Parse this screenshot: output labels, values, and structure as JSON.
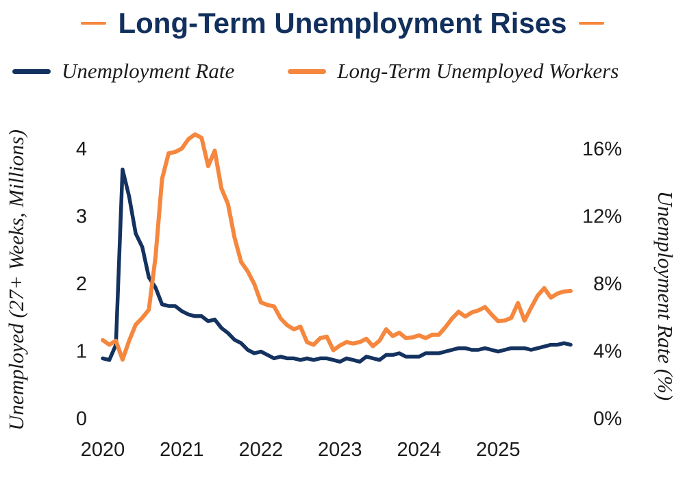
{
  "header": {
    "title": "Long-Term Unemployment Rises"
  },
  "legend": {
    "items": [
      {
        "label": "Unemployment Rate",
        "color": "#14325F"
      },
      {
        "label": "Long-Term Unemployed Workers",
        "color": "#F5873E"
      }
    ]
  },
  "colors": {
    "navy": "#14325F",
    "orange": "#F5873E",
    "title_navy": "#12305D",
    "text": "#1b1b1b",
    "background": "#FFFFFF"
  },
  "chart_data": {
    "type": "line",
    "title": "Long-Term Unemployment Rises",
    "x_unit": "monthly",
    "x_start": "2020-01",
    "x_end": "2025-12",
    "x_tick_labels": [
      "2020",
      "2021",
      "2022",
      "2023",
      "2024",
      "2025"
    ],
    "grid": false,
    "legend_position": "top",
    "left_axis": {
      "title": "Unemployed (27+ Weeks, Millions)",
      "tick_labels": [
        "0",
        "1",
        "2",
        "3",
        "4"
      ],
      "tick_values": [
        0,
        1,
        2,
        3,
        4
      ],
      "range": [
        0,
        4.35
      ]
    },
    "right_axis": {
      "title": "Unemployment Rate (%)",
      "tick_labels": [
        "0%",
        "4%",
        "8%",
        "12%",
        "16%"
      ],
      "tick_values": [
        0,
        4,
        8,
        12,
        16
      ],
      "range": [
        0,
        17.4
      ]
    },
    "series": [
      {
        "name": "Unemployment Rate",
        "axis": "right",
        "unit": "percent",
        "color": "#14325F",
        "values": [
          3.6,
          3.5,
          4.4,
          14.8,
          13.2,
          11.0,
          10.2,
          8.4,
          7.8,
          6.8,
          6.7,
          6.7,
          6.4,
          6.2,
          6.1,
          6.1,
          5.8,
          5.9,
          5.4,
          5.1,
          4.7,
          4.5,
          4.1,
          3.9,
          4.0,
          3.8,
          3.6,
          3.7,
          3.6,
          3.6,
          3.5,
          3.6,
          3.5,
          3.6,
          3.6,
          3.5,
          3.4,
          3.6,
          3.5,
          3.4,
          3.7,
          3.6,
          3.5,
          3.8,
          3.8,
          3.9,
          3.7,
          3.7,
          3.7,
          3.9,
          3.9,
          3.9,
          4.0,
          4.1,
          4.2,
          4.2,
          4.1,
          4.1,
          4.2,
          4.1,
          4.0,
          4.1,
          4.2,
          4.2,
          4.2,
          4.1,
          4.2,
          4.3,
          4.4,
          4.4,
          4.5,
          4.4
        ]
      },
      {
        "name": "Long-Term Unemployed Workers",
        "axis": "left",
        "unit": "millions",
        "color": "#F5873E",
        "values": [
          1.17,
          1.1,
          1.16,
          0.88,
          1.16,
          1.4,
          1.5,
          1.62,
          2.4,
          3.56,
          3.94,
          3.96,
          4.01,
          4.15,
          4.22,
          4.17,
          3.75,
          3.98,
          3.42,
          3.19,
          2.69,
          2.33,
          2.19,
          2.0,
          1.73,
          1.69,
          1.67,
          1.49,
          1.39,
          1.33,
          1.37,
          1.14,
          1.1,
          1.2,
          1.22,
          1.02,
          1.09,
          1.14,
          1.12,
          1.14,
          1.19,
          1.08,
          1.16,
          1.33,
          1.23,
          1.28,
          1.2,
          1.21,
          1.24,
          1.2,
          1.25,
          1.25,
          1.36,
          1.49,
          1.59,
          1.52,
          1.58,
          1.61,
          1.66,
          1.55,
          1.45,
          1.46,
          1.5,
          1.72,
          1.46,
          1.65,
          1.83,
          1.94,
          1.8,
          1.86,
          1.89,
          1.9
        ]
      }
    ]
  }
}
